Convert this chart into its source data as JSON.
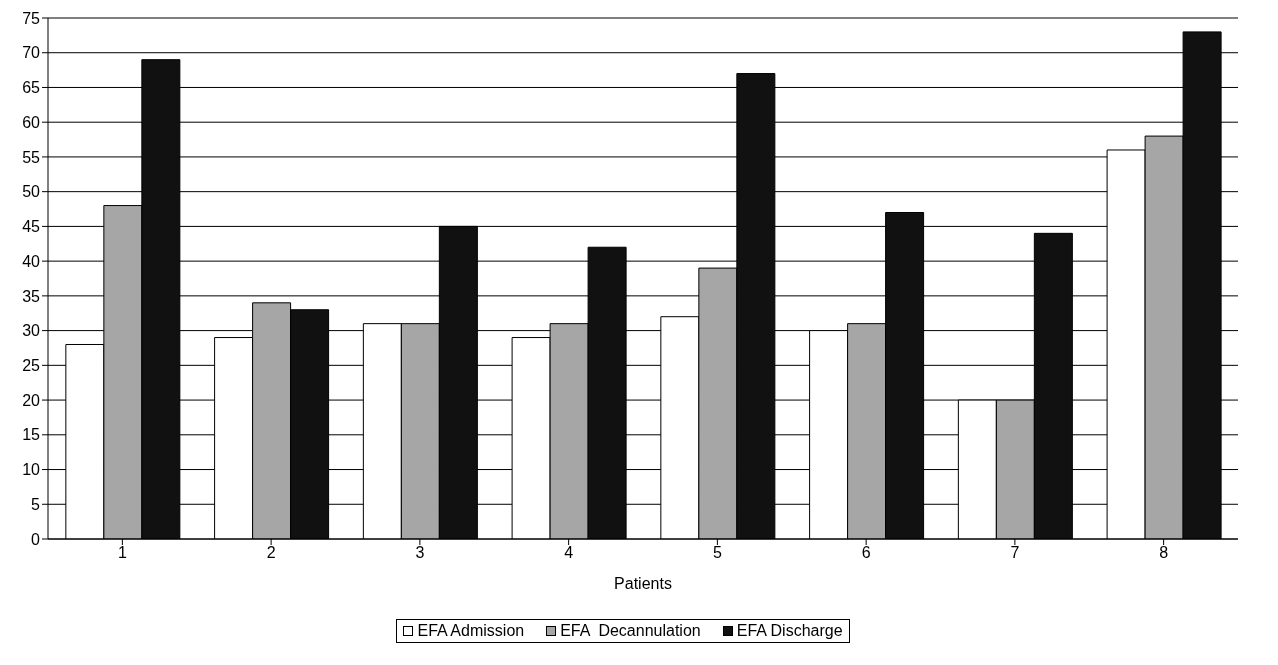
{
  "chart_data": {
    "type": "bar",
    "xlabel": "Patients",
    "categories": [
      "1",
      "2",
      "3",
      "4",
      "5",
      "6",
      "7",
      "8"
    ],
    "series": [
      {
        "name": "EFA Admission",
        "color": "#ffffff",
        "values": [
          28,
          29,
          31,
          29,
          32,
          30,
          20,
          56
        ]
      },
      {
        "name": "EFA  Decannulation",
        "color": "#a6a6a6",
        "values": [
          48,
          34,
          31,
          31,
          39,
          31,
          20,
          58
        ]
      },
      {
        "name": "EFA Discharge",
        "color": "#111111",
        "values": [
          69,
          33,
          45,
          42,
          67,
          47,
          44,
          73
        ]
      }
    ],
    "ylim": [
      0,
      75
    ],
    "yticks": [
      0,
      5,
      10,
      15,
      20,
      25,
      30,
      35,
      40,
      45,
      50,
      55,
      60,
      65,
      70,
      75
    ],
    "grid": "y",
    "legend": "bottom"
  }
}
